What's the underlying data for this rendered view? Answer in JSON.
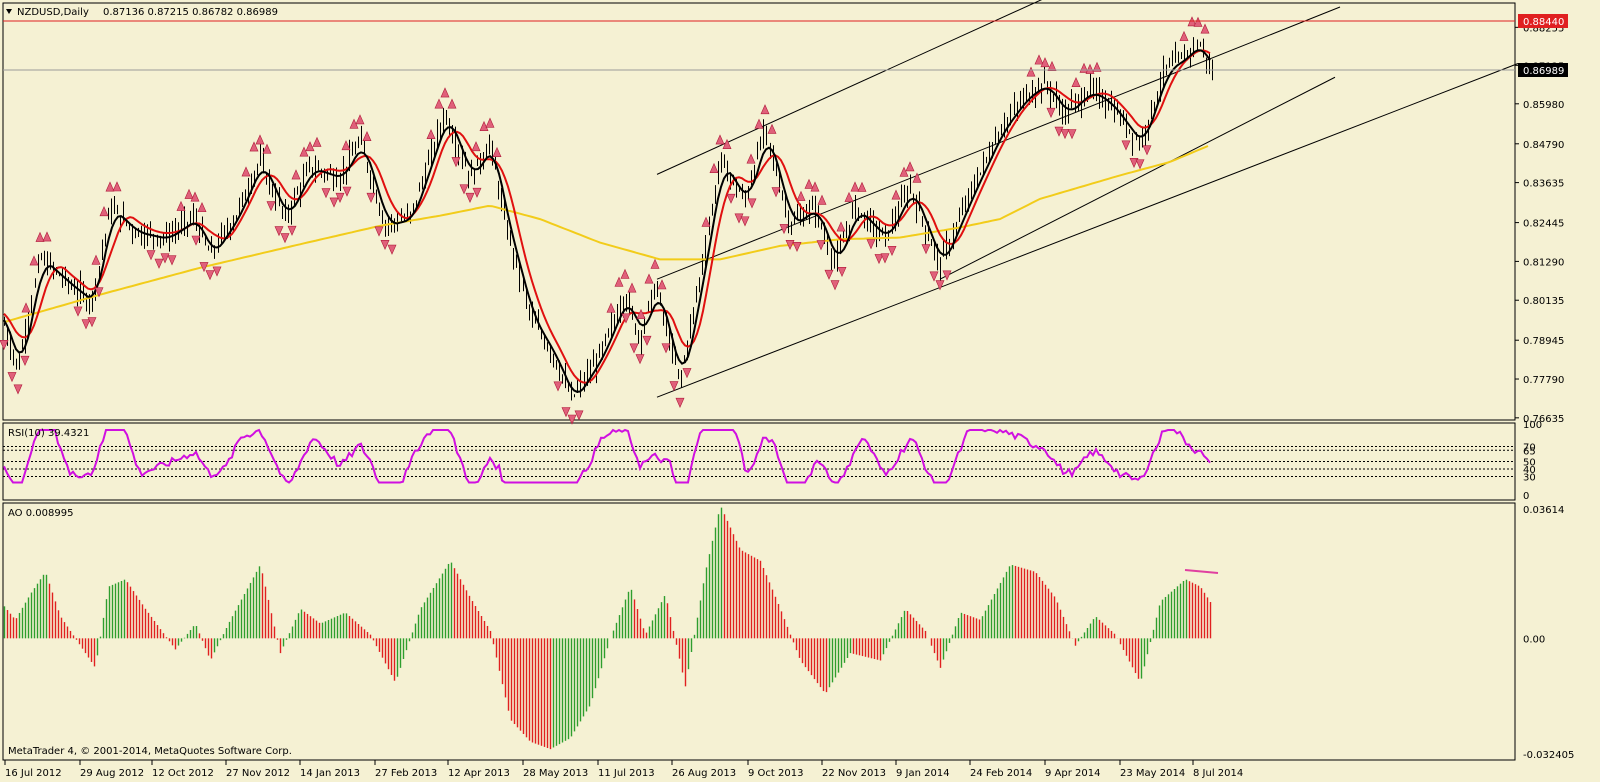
{
  "header": {
    "symbol": "NZDUSD,Daily",
    "ohlc": "0.87136 0.87215 0.86782 0.86989"
  },
  "rsi": {
    "label": "RSI(10) 39.4321"
  },
  "ao": {
    "label": "AO 0.008995"
  },
  "copyright": "MetaTrader 4, © 2001-2014, MetaQuotes Software Corp.",
  "chart_data": {
    "type": "candlestick",
    "instrument": "NZDUSD",
    "timeframe": "Daily",
    "price_axis_ticks": [
      "0.88255",
      "0.87125",
      "0.85980",
      "0.84790",
      "0.83635",
      "0.82445",
      "0.81290",
      "0.80135",
      "0.78945",
      "0.77790",
      "0.76635"
    ],
    "price_range": [
      0.7663,
      0.8895
    ],
    "highlight_labels": {
      "hline": "0.88440",
      "last": "0.86989"
    },
    "rsi_axis_ticks": [
      "100",
      "70",
      "65",
      "50",
      "40",
      "30",
      "0"
    ],
    "ao_axis_ticks": [
      "0.03614",
      "0.00",
      "-0.032405"
    ],
    "ao_range": [
      -0.0324,
      0.0361
    ],
    "time_axis_labels": [
      "16 Jul 2012",
      "29 Aug 2012",
      "12 Oct 2012",
      "27 Nov 2012",
      "14 Jan 2013",
      "27 Feb 2013",
      "12 Apr 2013",
      "28 May 2013",
      "11 Jul 2013",
      "26 Aug 2013",
      "9 Oct 2013",
      "22 Nov 2013",
      "9 Jan 2014",
      "24 Feb 2014",
      "9 Apr 2014",
      "23 May 2014",
      "8 Jul 2014"
    ],
    "price_path": [
      [
        0,
        0.798
      ],
      [
        18,
        0.781
      ],
      [
        40,
        0.814
      ],
      [
        70,
        0.806
      ],
      [
        92,
        0.801
      ],
      [
        110,
        0.829
      ],
      [
        135,
        0.822
      ],
      [
        165,
        0.82
      ],
      [
        195,
        0.826
      ],
      [
        210,
        0.815
      ],
      [
        235,
        0.826
      ],
      [
        260,
        0.843
      ],
      [
        285,
        0.826
      ],
      [
        310,
        0.841
      ],
      [
        340,
        0.838
      ],
      [
        360,
        0.849
      ],
      [
        385,
        0.824
      ],
      [
        410,
        0.826
      ],
      [
        445,
        0.857
      ],
      [
        470,
        0.838
      ],
      [
        490,
        0.848
      ],
      [
        505,
        0.825
      ],
      [
        530,
        0.797
      ],
      [
        555,
        0.784
      ],
      [
        572,
        0.772
      ],
      [
        600,
        0.785
      ],
      [
        625,
        0.803
      ],
      [
        640,
        0.79
      ],
      [
        655,
        0.806
      ],
      [
        680,
        0.777
      ],
      [
        700,
        0.808
      ],
      [
        720,
        0.843
      ],
      [
        745,
        0.831
      ],
      [
        765,
        0.852
      ],
      [
        790,
        0.824
      ],
      [
        815,
        0.829
      ],
      [
        835,
        0.812
      ],
      [
        855,
        0.829
      ],
      [
        885,
        0.82
      ],
      [
        910,
        0.835
      ],
      [
        940,
        0.812
      ],
      [
        970,
        0.833
      ],
      [
        1000,
        0.852
      ],
      [
        1025,
        0.862
      ],
      [
        1045,
        0.866
      ],
      [
        1065,
        0.857
      ],
      [
        1090,
        0.864
      ],
      [
        1110,
        0.86
      ],
      [
        1140,
        0.848
      ],
      [
        1165,
        0.87
      ],
      [
        1185,
        0.874
      ],
      [
        1198,
        0.878
      ],
      [
        1205,
        0.874
      ],
      [
        1212,
        0.869
      ]
    ],
    "ma_black_offsets": [
      -0.0015,
      0.002
    ],
    "ma_red_offsets": [
      0.002,
      -0.001
    ],
    "ma_yellow_path": [
      [
        0,
        0.7945
      ],
      [
        100,
        0.803
      ],
      [
        200,
        0.811
      ],
      [
        300,
        0.818
      ],
      [
        380,
        0.8235
      ],
      [
        440,
        0.8265
      ],
      [
        490,
        0.8295
      ],
      [
        540,
        0.8255
      ],
      [
        600,
        0.8185
      ],
      [
        660,
        0.8135
      ],
      [
        720,
        0.8135
      ],
      [
        780,
        0.8175
      ],
      [
        840,
        0.8195
      ],
      [
        900,
        0.82
      ],
      [
        960,
        0.823
      ],
      [
        1000,
        0.8255
      ],
      [
        1040,
        0.8315
      ],
      [
        1080,
        0.835
      ],
      [
        1120,
        0.8385
      ],
      [
        1170,
        0.8425
      ],
      [
        1210,
        0.8475
      ]
    ],
    "trendlines": [
      {
        "from": [
          657,
          0.8388
        ],
        "to": [
          1055,
          0.8926
        ]
      },
      {
        "from": [
          657,
          0.8076
        ],
        "to": [
          1340,
          0.8886
        ]
      },
      {
        "from": [
          657,
          0.7725
        ],
        "to": [
          1518,
          0.8718
        ]
      },
      {
        "from": [
          940,
          0.8076
        ],
        "to": [
          1335,
          0.8677
        ]
      }
    ],
    "ao_path": [
      [
        0,
        0.01
      ],
      [
        15,
        0.005
      ],
      [
        30,
        0.012
      ],
      [
        45,
        0.018
      ],
      [
        60,
        0.006
      ],
      [
        80,
        -0.002
      ],
      [
        95,
        -0.008
      ],
      [
        108,
        0.014
      ],
      [
        125,
        0.016
      ],
      [
        145,
        0.008
      ],
      [
        175,
        -0.003
      ],
      [
        195,
        0.004
      ],
      [
        210,
        -0.006
      ],
      [
        230,
        0.005
      ],
      [
        260,
        0.02
      ],
      [
        280,
        -0.004
      ],
      [
        300,
        0.008
      ],
      [
        320,
        0.004
      ],
      [
        345,
        0.007
      ],
      [
        370,
        0.001
      ],
      [
        395,
        -0.012
      ],
      [
        420,
        0.008
      ],
      [
        450,
        0.021
      ],
      [
        470,
        0.011
      ],
      [
        490,
        0.002
      ],
      [
        510,
        -0.022
      ],
      [
        530,
        -0.028
      ],
      [
        550,
        -0.03
      ],
      [
        570,
        -0.027
      ],
      [
        590,
        -0.018
      ],
      [
        610,
        0.0
      ],
      [
        630,
        0.014
      ],
      [
        645,
        0.001
      ],
      [
        665,
        0.012
      ],
      [
        685,
        -0.013
      ],
      [
        705,
        0.018
      ],
      [
        720,
        0.036
      ],
      [
        740,
        0.024
      ],
      [
        760,
        0.021
      ],
      [
        780,
        0.008
      ],
      [
        800,
        -0.006
      ],
      [
        825,
        -0.015
      ],
      [
        850,
        -0.004
      ],
      [
        880,
        -0.006
      ],
      [
        905,
        0.008
      ],
      [
        925,
        0.002
      ],
      [
        940,
        -0.008
      ],
      [
        960,
        0.007
      ],
      [
        980,
        0.005
      ],
      [
        1010,
        0.02
      ],
      [
        1035,
        0.018
      ],
      [
        1055,
        0.011
      ],
      [
        1075,
        -0.002
      ],
      [
        1095,
        0.006
      ],
      [
        1115,
        0.001
      ],
      [
        1140,
        -0.012
      ],
      [
        1160,
        0.01
      ],
      [
        1185,
        0.016
      ],
      [
        1200,
        0.014
      ],
      [
        1212,
        0.009
      ]
    ]
  }
}
